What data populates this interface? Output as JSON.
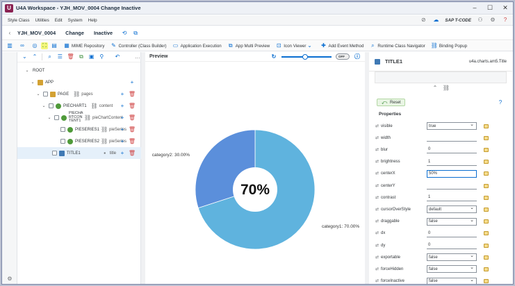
{
  "window": {
    "title": "U4A Workspace - YJH_MOV_0004 Change Inactive",
    "logo_letter": "U"
  },
  "menu": {
    "items": [
      "Style Class",
      "Utilities",
      "Edit",
      "System",
      "Help"
    ],
    "tcode_label": "SAP T-CODE"
  },
  "header": {
    "app_name": "YJH_MOV_0004",
    "mode": "Change",
    "status": "Inactive"
  },
  "toolbar": {
    "buttons": [
      "MIME Repository",
      "Controller (Class Builder)",
      "Application Execution",
      "App Multi Preview",
      "Icon Viewer",
      "Add Event Method",
      "Runtime Class Navigator",
      "Binding Popup"
    ]
  },
  "tree": {
    "nodes": [
      {
        "label": "ROOT",
        "aggr": ""
      },
      {
        "label": "APP",
        "aggr": ""
      },
      {
        "label": "PAGE",
        "aggr": "pages"
      },
      {
        "label": "PIECHART1",
        "aggr": "content"
      },
      {
        "label": "PIECHA RTCON TENT1",
        "aggr": "pieChartContent"
      },
      {
        "label": "PIESERIES1",
        "aggr": "pieSeries"
      },
      {
        "label": "PIESERIES2",
        "aggr": "pieSeries"
      },
      {
        "label": "TITLE1",
        "aggr": "title"
      }
    ]
  },
  "preview": {
    "title": "Preview",
    "toggle_label": "OFF"
  },
  "chart_data": {
    "type": "pie",
    "categories": [
      "category1",
      "category2"
    ],
    "values": [
      70,
      30
    ],
    "labels": [
      "category1: 70.00%",
      "category2: 30.00%"
    ],
    "center_label": "70%",
    "colors": [
      "#5fb3de",
      "#5b8fdb"
    ]
  },
  "properties": {
    "element": "TITLE1",
    "class_name": "u4a.charts.am5.Title",
    "reset_label": "Reset",
    "section_title": "Properties",
    "rows": [
      {
        "name": "visible",
        "value": "true",
        "kind": "select"
      },
      {
        "name": "width",
        "value": "",
        "kind": "input"
      },
      {
        "name": "blur",
        "value": "0",
        "kind": "input"
      },
      {
        "name": "brightness",
        "value": "1",
        "kind": "input"
      },
      {
        "name": "centerX",
        "value": "50%",
        "kind": "focus"
      },
      {
        "name": "centerY",
        "value": "",
        "kind": "input"
      },
      {
        "name": "contrast",
        "value": "1",
        "kind": "input"
      },
      {
        "name": "cursorOverStyle",
        "value": "default",
        "kind": "select"
      },
      {
        "name": "draggable",
        "value": "false",
        "kind": "select"
      },
      {
        "name": "dx",
        "value": "0",
        "kind": "input"
      },
      {
        "name": "dy",
        "value": "0",
        "kind": "input"
      },
      {
        "name": "exportable",
        "value": "false",
        "kind": "select"
      },
      {
        "name": "forceHidden",
        "value": "false",
        "kind": "select"
      },
      {
        "name": "forceInactive",
        "value": "false",
        "kind": "select"
      }
    ]
  }
}
